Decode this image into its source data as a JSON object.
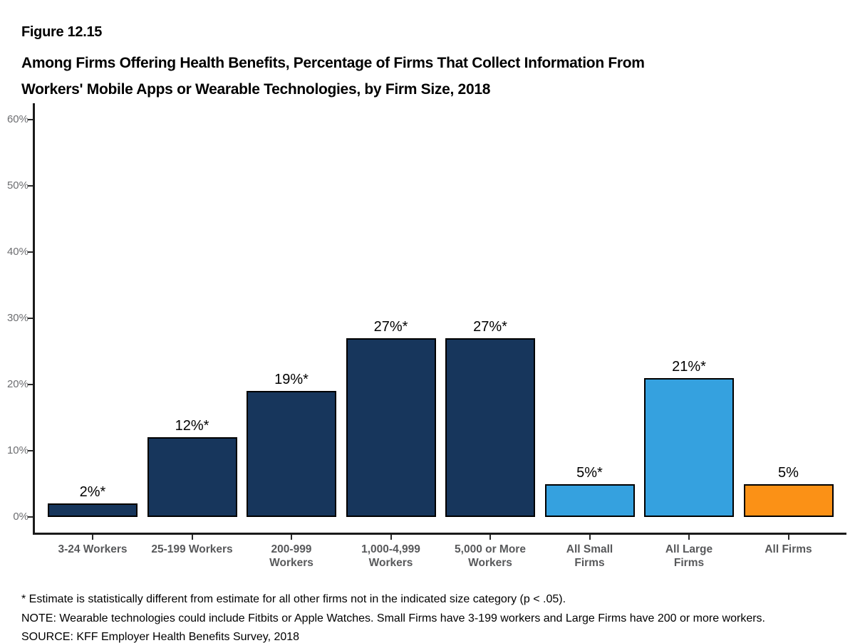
{
  "figure": {
    "label": "Figure 12.15",
    "title_lines": [
      "Among Firms Offering Health Benefits, Percentage of Firms That Collect Information From",
      "Workers' Mobile Apps or Wearable Technologies, by Firm Size, 2018"
    ]
  },
  "footnotes": [
    "* Estimate is statistically different from estimate for all other firms not in the indicated size category (p < .05).",
    "NOTE: Wearable technologies could include Fitbits or Apple Watches. Small Firms have 3-199 workers and Large Firms have 200 or more workers.",
    "SOURCE: KFF Employer Health Benefits Survey, 2018"
  ],
  "colors": {
    "navy": "#17365C",
    "light_blue": "#35A1DF",
    "orange": "#FB9116",
    "axis": "#1A1A1A",
    "category_label": "#58595B",
    "ytick_label": "#6D6E71"
  },
  "chart_data": {
    "type": "bar",
    "title": "Among Firms Offering Health Benefits, Percentage of Firms That Collect Information From Workers' Mobile Apps or Wearable Technologies, by Firm Size, 2018",
    "categories": [
      "3-24 Workers",
      "25-199 Workers",
      "200-999\nWorkers",
      "1,000-4,999\nWorkers",
      "5,000 or More\nWorkers",
      "All Small\nFirms",
      "All Large\nFirms",
      "All Firms"
    ],
    "values": [
      2,
      12,
      19,
      27,
      27,
      5,
      21,
      5
    ],
    "bar_labels": [
      "2%*",
      "12%*",
      "19%*",
      "27%*",
      "27%*",
      "5%*",
      "21%*",
      "5%"
    ],
    "bar_colors": [
      "#17365C",
      "#17365C",
      "#17365C",
      "#17365C",
      "#17365C",
      "#35A1DF",
      "#35A1DF",
      "#FB9116"
    ],
    "xlabel": "",
    "ylabel": "",
    "ylim": [
      0,
      60
    ],
    "ytick_labels": [
      "0%",
      "10%",
      "20%",
      "30%",
      "40%",
      "50%",
      "60%"
    ],
    "grid": false,
    "legend": false
  }
}
